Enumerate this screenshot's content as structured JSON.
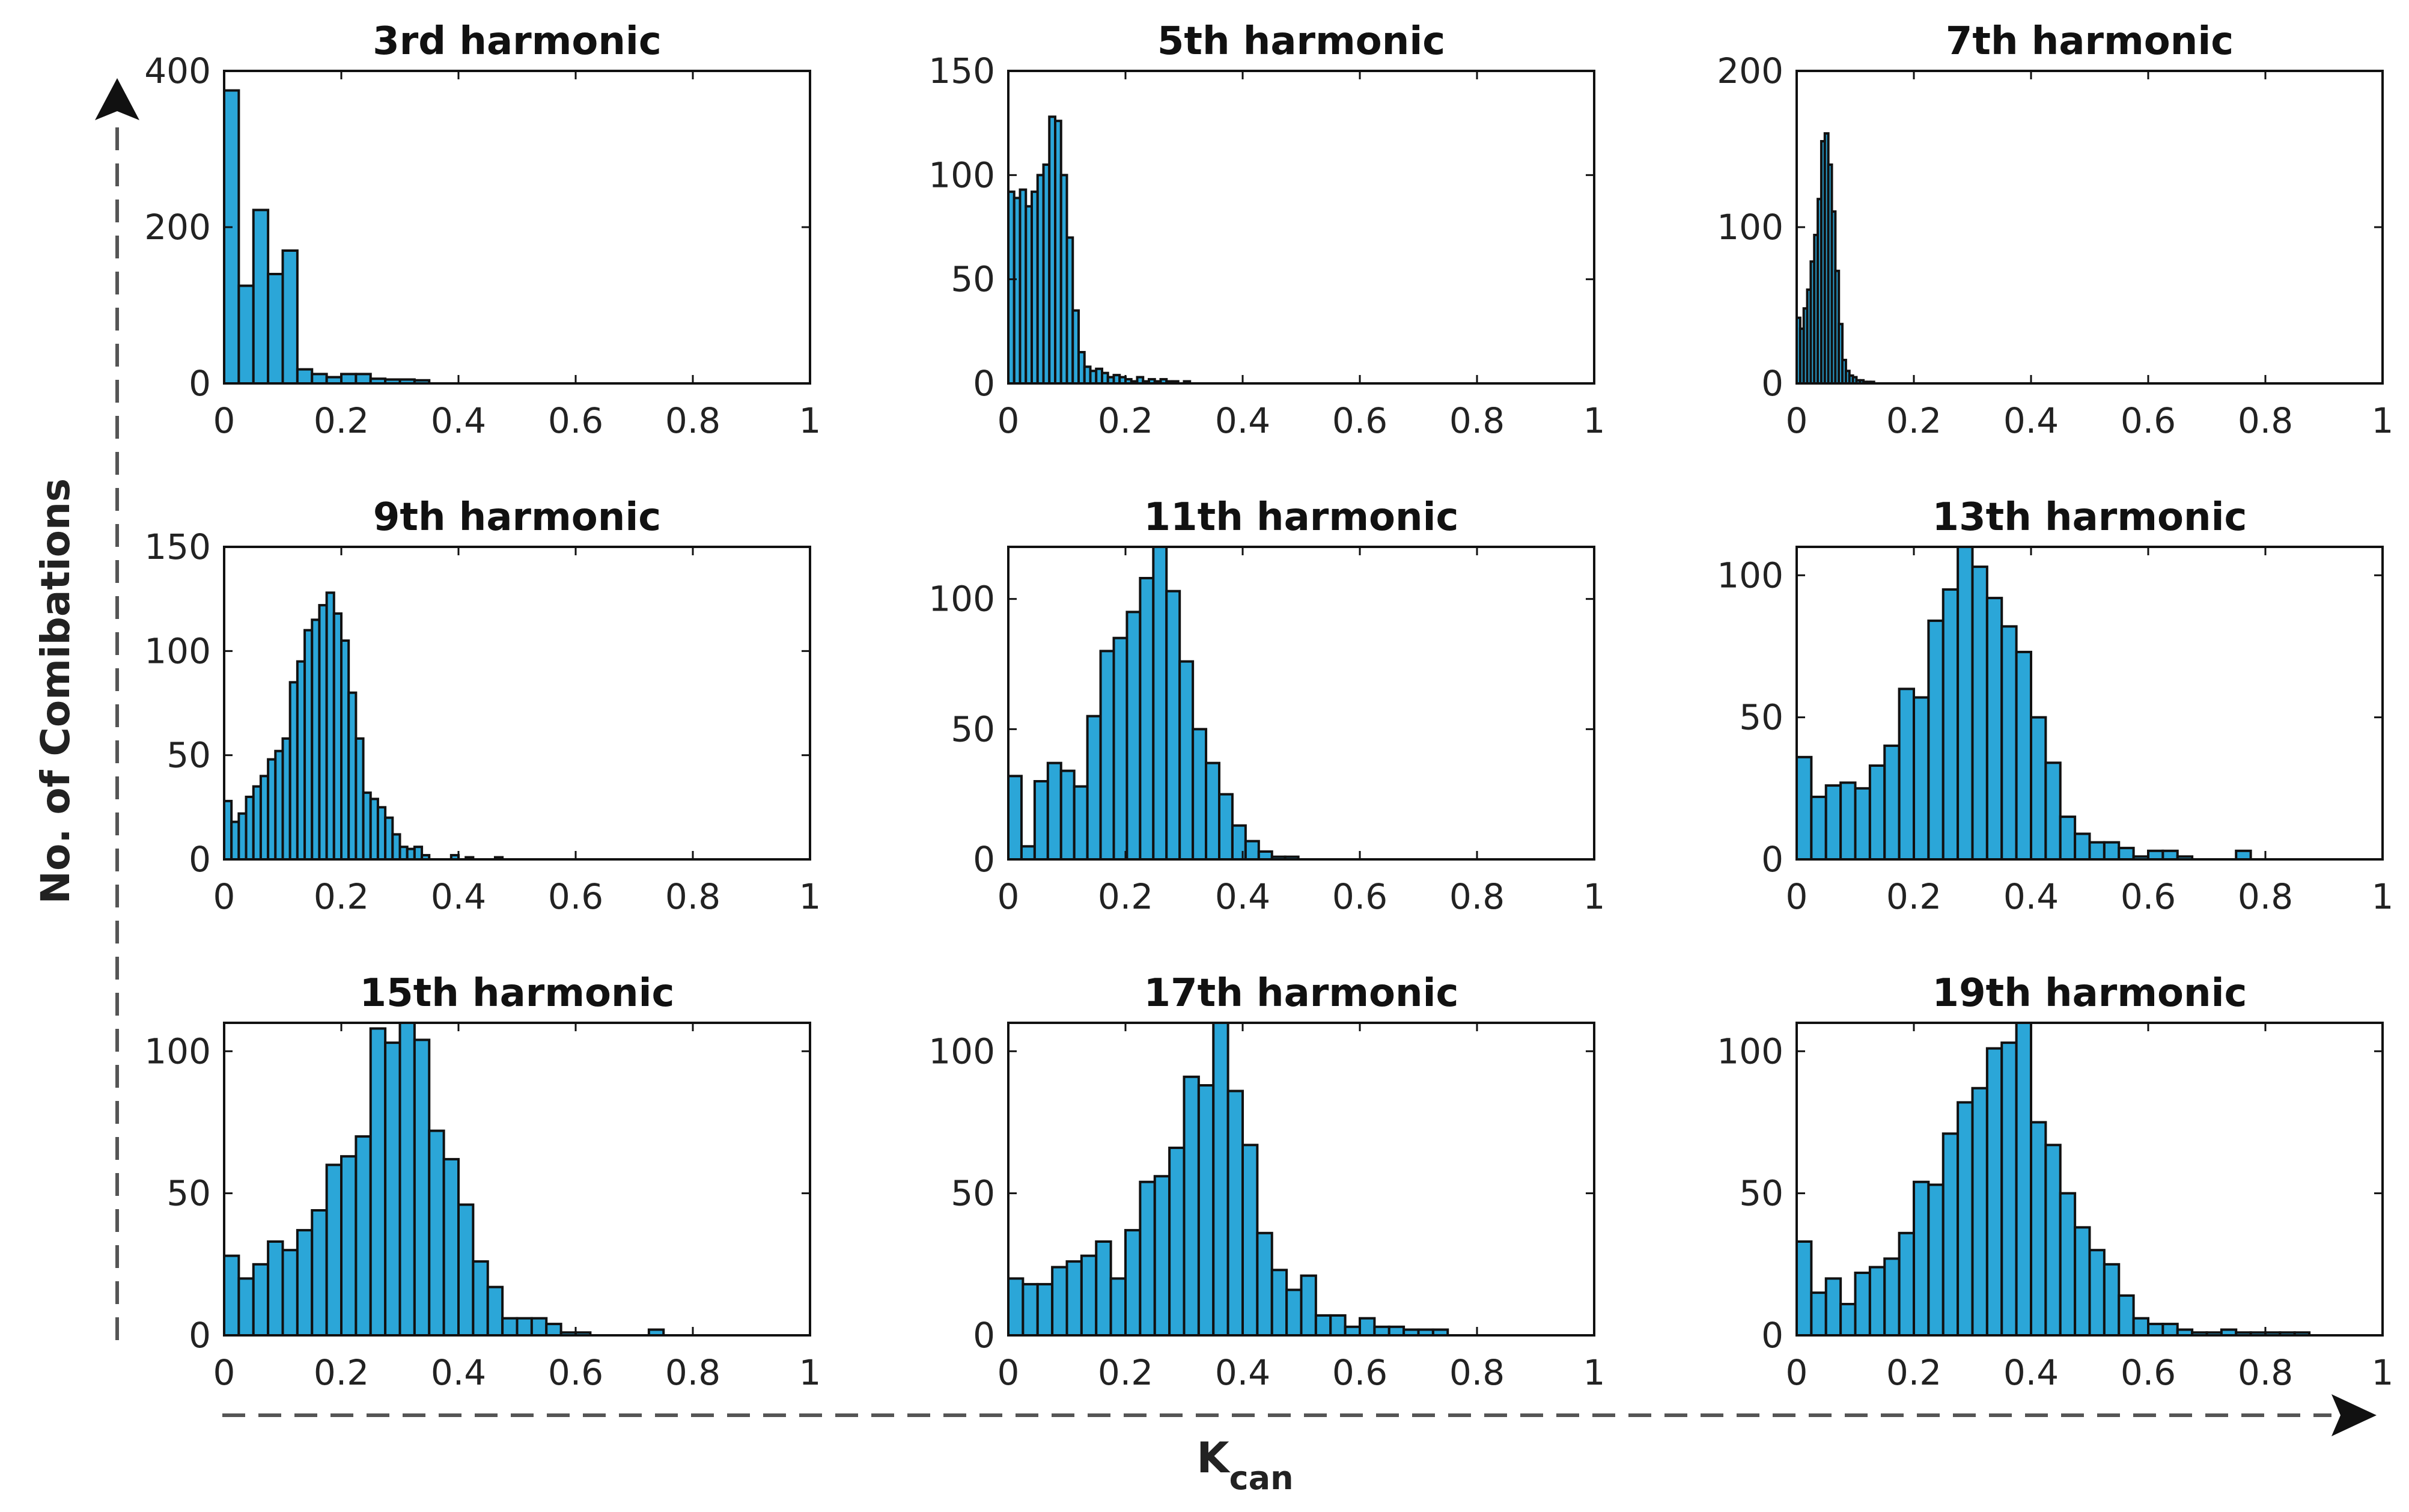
{
  "figure": {
    "ylabel": "No. of Comibations",
    "xlabel_main": "K",
    "xlabel_sub": "can"
  },
  "chart_data": [
    {
      "type": "bar",
      "title": "3rd harmonic",
      "xlim": [
        0,
        1
      ],
      "ylim": [
        0,
        400
      ],
      "xticks": [
        "0",
        "0.2",
        "0.4",
        "0.6",
        "0.8",
        "1"
      ],
      "yticks": [
        "0",
        "200",
        "400"
      ],
      "bin_width": 0.025,
      "values": [
        375,
        125,
        222,
        140,
        170,
        18,
        12,
        8,
        12,
        12,
        6,
        5,
        5,
        4
      ]
    },
    {
      "type": "bar",
      "title": "5th harmonic",
      "xlim": [
        0,
        1
      ],
      "ylim": [
        0,
        150
      ],
      "xticks": [
        "0",
        "0.2",
        "0.4",
        "0.6",
        "0.8",
        "1"
      ],
      "yticks": [
        "0",
        "50",
        "100",
        "150"
      ],
      "bin_width": 0.01,
      "values": [
        92,
        89,
        93,
        85,
        92,
        100,
        105,
        128,
        126,
        100,
        70,
        35,
        15,
        8,
        6,
        7,
        5,
        3,
        4,
        3,
        2,
        1,
        3,
        1,
        2,
        1,
        2,
        1,
        1,
        0,
        1
      ]
    },
    {
      "type": "bar",
      "title": "7th harmonic",
      "xlim": [
        0,
        1
      ],
      "ylim": [
        0,
        200
      ],
      "xticks": [
        "0",
        "0.2",
        "0.4",
        "0.6",
        "0.8",
        "1"
      ],
      "yticks": [
        "0",
        "100",
        "200"
      ],
      "bin_width": 0.006,
      "values": [
        42,
        35,
        48,
        60,
        78,
        95,
        118,
        155,
        160,
        140,
        110,
        72,
        38,
        15,
        8,
        5,
        4,
        2,
        2,
        1,
        1,
        1
      ]
    },
    {
      "type": "bar",
      "title": "9th harmonic",
      "xlim": [
        0,
        1
      ],
      "ylim": [
        0,
        150
      ],
      "xticks": [
        "0",
        "0.2",
        "0.4",
        "0.6",
        "0.8",
        "1"
      ],
      "yticks": [
        "0",
        "50",
        "100",
        "150"
      ],
      "bin_width": 0.0125,
      "values": [
        28,
        18,
        22,
        30,
        35,
        40,
        48,
        52,
        58,
        85,
        95,
        110,
        115,
        122,
        128,
        118,
        105,
        80,
        58,
        32,
        29,
        25,
        20,
        12,
        6,
        5,
        6,
        2,
        0,
        0,
        0,
        2,
        0,
        1,
        0,
        0,
        0,
        1
      ]
    },
    {
      "type": "bar",
      "title": "11th harmonic",
      "xlim": [
        0,
        1
      ],
      "ylim": [
        0,
        120
      ],
      "xticks": [
        "0",
        "0.2",
        "0.4",
        "0.6",
        "0.8",
        "1"
      ],
      "yticks": [
        "0",
        "50",
        "100"
      ],
      "bin_width": 0.0225,
      "values": [
        32,
        5,
        30,
        37,
        34,
        28,
        55,
        80,
        85,
        95,
        108,
        120,
        103,
        76,
        50,
        37,
        25,
        13,
        7,
        3,
        1,
        1
      ]
    },
    {
      "type": "bar",
      "title": "13th harmonic",
      "xlim": [
        0,
        1
      ],
      "ylim": [
        0,
        110
      ],
      "xticks": [
        "0",
        "0.2",
        "0.4",
        "0.6",
        "0.8",
        "1"
      ],
      "yticks": [
        "0",
        "50",
        "100"
      ],
      "bin_width": 0.025,
      "values": [
        36,
        22,
        26,
        27,
        25,
        33,
        40,
        60,
        57,
        84,
        95,
        112,
        103,
        92,
        82,
        73,
        50,
        34,
        15,
        9,
        6,
        6,
        4,
        1,
        3,
        3,
        1,
        0,
        0,
        0,
        3
      ]
    },
    {
      "type": "bar",
      "title": "15th harmonic",
      "xlim": [
        0,
        1
      ],
      "ylim": [
        0,
        110
      ],
      "xticks": [
        "0",
        "0.2",
        "0.4",
        "0.6",
        "0.8",
        "1"
      ],
      "yticks": [
        "0",
        "50",
        "100"
      ],
      "bin_width": 0.025,
      "values": [
        28,
        20,
        25,
        33,
        30,
        37,
        44,
        60,
        63,
        70,
        108,
        103,
        112,
        104,
        72,
        62,
        46,
        26,
        17,
        6,
        6,
        6,
        4,
        1,
        1,
        0,
        0,
        0,
        0,
        2
      ]
    },
    {
      "type": "bar",
      "title": "17th harmonic",
      "xlim": [
        0,
        1
      ],
      "ylim": [
        0,
        110
      ],
      "xticks": [
        "0",
        "0.2",
        "0.4",
        "0.6",
        "0.8",
        "1"
      ],
      "yticks": [
        "0",
        "50",
        "100"
      ],
      "bin_width": 0.025,
      "values": [
        20,
        18,
        18,
        24,
        26,
        28,
        33,
        20,
        37,
        54,
        56,
        66,
        91,
        88,
        110,
        86,
        67,
        36,
        23,
        16,
        21,
        7,
        7,
        3,
        6,
        3,
        3,
        2,
        2,
        2
      ]
    },
    {
      "type": "bar",
      "title": "19th harmonic",
      "xlim": [
        0,
        1
      ],
      "ylim": [
        0,
        110
      ],
      "xticks": [
        "0",
        "0.2",
        "0.4",
        "0.6",
        "0.8",
        "1"
      ],
      "yticks": [
        "0",
        "50",
        "100"
      ],
      "bin_width": 0.025,
      "values": [
        33,
        15,
        20,
        11,
        22,
        24,
        27,
        36,
        54,
        53,
        71,
        82,
        87,
        101,
        103,
        110,
        75,
        67,
        50,
        38,
        30,
        25,
        14,
        6,
        4,
        4,
        2,
        1,
        1,
        2,
        1,
        1,
        1,
        1,
        1
      ]
    }
  ]
}
